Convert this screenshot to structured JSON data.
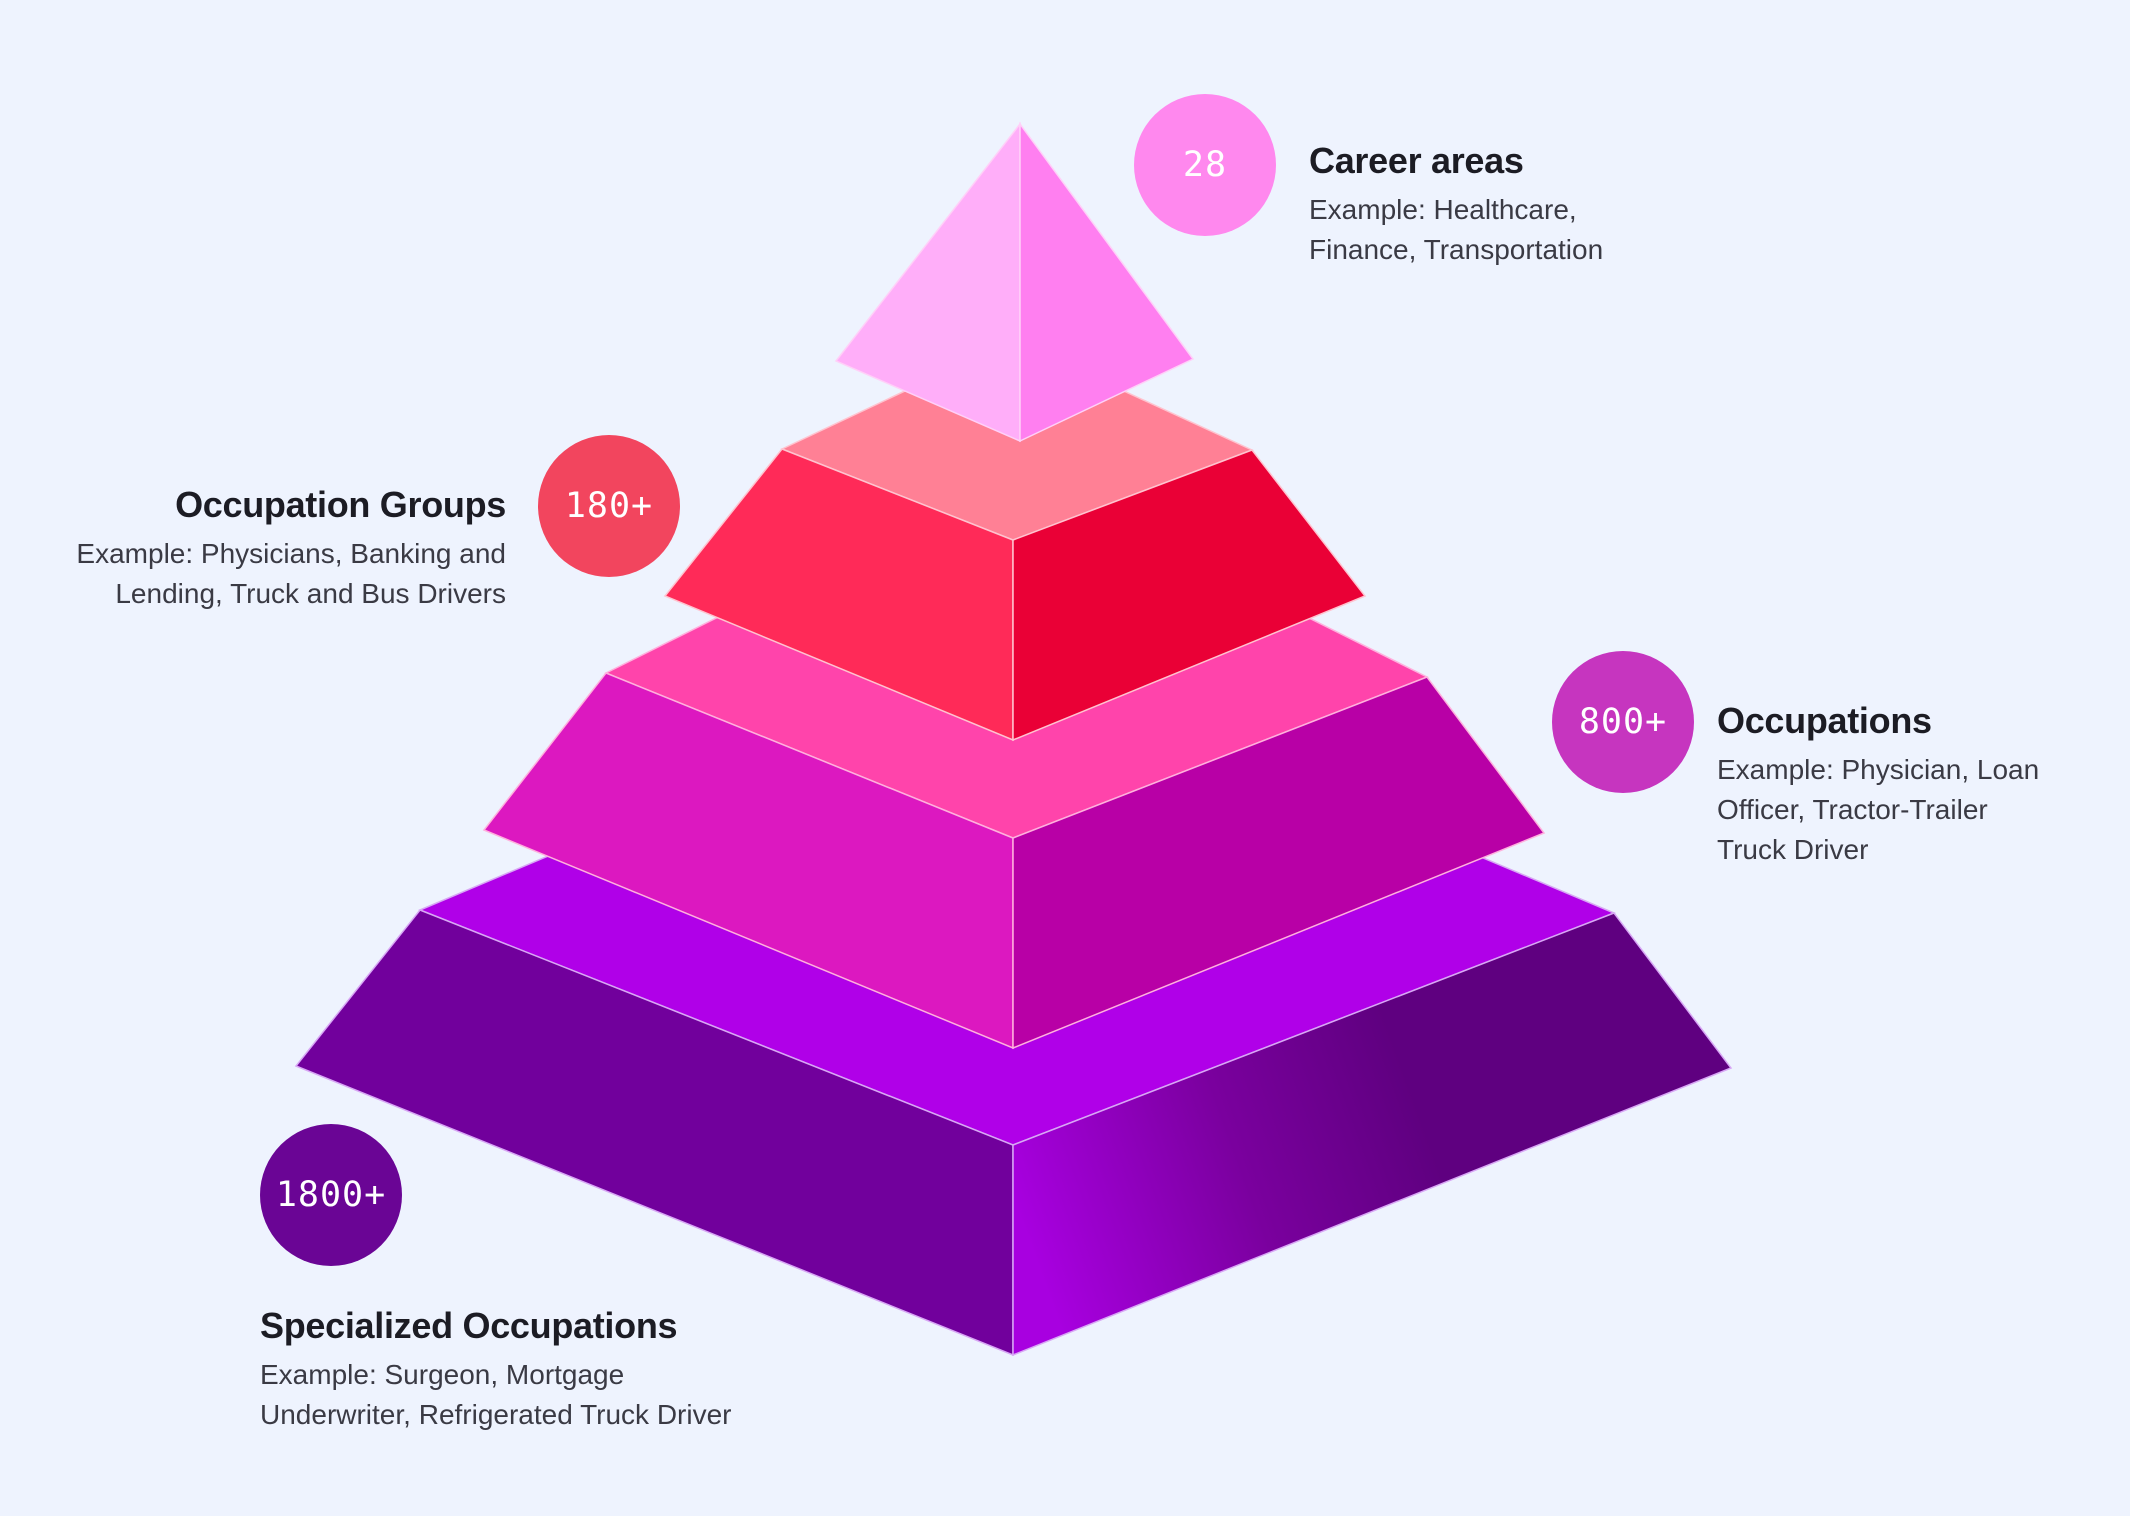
{
  "colors": {
    "background": "#eef3fe",
    "tier1_badge": "#ff88ee",
    "tier2_badge": "#f2455e",
    "tier3_badge": "#c635bf",
    "tier4_badge": "#6a0595"
  },
  "tiers": [
    {
      "badge": "28",
      "title": "Career areas",
      "description_lines": [
        "Example: Healthcare,",
        "Finance, Transportation"
      ]
    },
    {
      "badge": "180+",
      "title": "Occupation Groups",
      "description_lines": [
        "Example: Physicians, Banking and",
        "Lending, Truck and Bus Drivers"
      ]
    },
    {
      "badge": "800+",
      "title": "Occupations",
      "description_lines": [
        "Example: Physician, Loan",
        "Officer, Tractor-Trailer",
        "Truck Driver"
      ]
    },
    {
      "badge": "1800+",
      "title": "Specialized Occupations",
      "description_lines": [
        "Example: Surgeon, Mortgage",
        "Underwriter, Refrigerated Truck Driver"
      ]
    }
  ]
}
